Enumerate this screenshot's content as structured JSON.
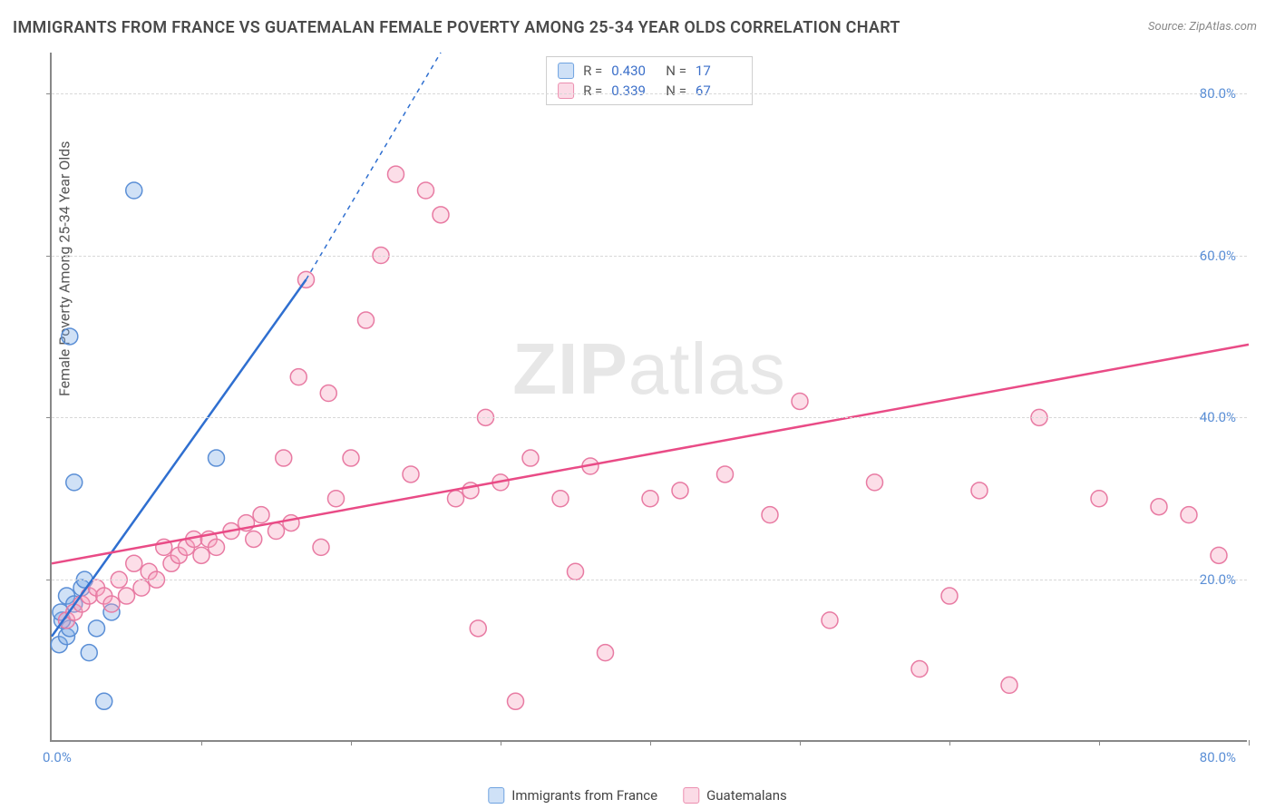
{
  "title": "IMMIGRANTS FROM FRANCE VS GUATEMALAN FEMALE POVERTY AMONG 25-34 YEAR OLDS CORRELATION CHART",
  "source": "Source: ZipAtlas.com",
  "y_axis_label": "Female Poverty Among 25-34 Year Olds",
  "watermark_bold": "ZIP",
  "watermark_light": "atlas",
  "chart": {
    "type": "scatter",
    "xlim": [
      0,
      80
    ],
    "ylim": [
      0,
      85
    ],
    "x_min_label": "0.0%",
    "x_max_label": "80.0%",
    "y_ticks": [
      20,
      40,
      60,
      80
    ],
    "y_tick_labels": [
      "20.0%",
      "40.0%",
      "60.0%",
      "80.0%"
    ],
    "x_minor_ticks": [
      10,
      20,
      30,
      40,
      50,
      60,
      70,
      80
    ],
    "grid_color": "#d8d8d8",
    "background_color": "#ffffff",
    "axis_color": "#888888",
    "tick_label_color": "#5b8fd6",
    "marker_radius": 9,
    "marker_stroke_width": 1.5,
    "series": [
      {
        "name": "Immigrants from France",
        "color_fill": "rgba(120,170,230,0.35)",
        "color_stroke": "#5b8fd6",
        "swatch_fill": "#cfe1f7",
        "swatch_border": "#6fa3e0",
        "R": "0.430",
        "N": "17",
        "trend": {
          "x1": 0,
          "y1": 13,
          "x2": 17,
          "y2": 57,
          "dash_x2": 26,
          "dash_y2": 85,
          "color": "#2f6fd0",
          "width": 2.5
        },
        "points": [
          [
            0.5,
            12
          ],
          [
            1,
            13
          ],
          [
            1.2,
            14
          ],
          [
            1,
            18
          ],
          [
            0.7,
            15
          ],
          [
            0.6,
            16
          ],
          [
            1.5,
            17
          ],
          [
            2,
            19
          ],
          [
            2.2,
            20
          ],
          [
            3,
            14
          ],
          [
            4,
            16
          ],
          [
            1.5,
            32
          ],
          [
            1.2,
            50
          ],
          [
            5.5,
            68
          ],
          [
            11,
            35
          ],
          [
            3.5,
            5
          ],
          [
            2.5,
            11
          ]
        ]
      },
      {
        "name": "Guatemalans",
        "color_fill": "rgba(245,160,190,0.35)",
        "color_stroke": "#e87ba3",
        "swatch_fill": "#fbdbe6",
        "swatch_border": "#ec8fb0",
        "R": "0.339",
        "N": "67",
        "trend": {
          "x1": 0,
          "y1": 22,
          "x2": 80,
          "y2": 49,
          "color": "#e94b86",
          "width": 2.5
        },
        "points": [
          [
            1,
            15
          ],
          [
            1.5,
            16
          ],
          [
            2,
            17
          ],
          [
            2.5,
            18
          ],
          [
            3,
            19
          ],
          [
            3.5,
            18
          ],
          [
            4,
            17
          ],
          [
            4.5,
            20
          ],
          [
            5,
            18
          ],
          [
            5.5,
            22
          ],
          [
            6,
            19
          ],
          [
            6.5,
            21
          ],
          [
            7,
            20
          ],
          [
            7.5,
            24
          ],
          [
            8,
            22
          ],
          [
            8.5,
            23
          ],
          [
            9,
            24
          ],
          [
            9.5,
            25
          ],
          [
            10,
            23
          ],
          [
            10.5,
            25
          ],
          [
            11,
            24
          ],
          [
            12,
            26
          ],
          [
            13,
            27
          ],
          [
            13.5,
            25
          ],
          [
            14,
            28
          ],
          [
            15,
            26
          ],
          [
            15.5,
            35
          ],
          [
            16,
            27
          ],
          [
            16.5,
            45
          ],
          [
            17,
            57
          ],
          [
            18,
            24
          ],
          [
            18.5,
            43
          ],
          [
            19,
            30
          ],
          [
            20,
            35
          ],
          [
            21,
            52
          ],
          [
            22,
            60
          ],
          [
            23,
            70
          ],
          [
            24,
            33
          ],
          [
            25,
            68
          ],
          [
            26,
            65
          ],
          [
            27,
            30
          ],
          [
            28,
            31
          ],
          [
            28.5,
            14
          ],
          [
            29,
            40
          ],
          [
            30,
            32
          ],
          [
            31,
            5
          ],
          [
            32,
            35
          ],
          [
            34,
            30
          ],
          [
            35,
            21
          ],
          [
            36,
            34
          ],
          [
            37,
            11
          ],
          [
            40,
            30
          ],
          [
            42,
            31
          ],
          [
            45,
            33
          ],
          [
            48,
            28
          ],
          [
            50,
            42
          ],
          [
            55,
            32
          ],
          [
            58,
            9
          ],
          [
            62,
            31
          ],
          [
            64,
            7
          ],
          [
            66,
            40
          ],
          [
            70,
            30
          ],
          [
            74,
            29
          ],
          [
            76,
            28
          ],
          [
            78,
            23
          ],
          [
            60,
            18
          ],
          [
            52,
            15
          ]
        ]
      }
    ]
  },
  "bottom_legend": [
    {
      "label": "Immigrants from France",
      "fill": "#cfe1f7",
      "border": "#6fa3e0"
    },
    {
      "label": "Guatemalans",
      "fill": "#fbdbe6",
      "border": "#ec8fb0"
    }
  ]
}
